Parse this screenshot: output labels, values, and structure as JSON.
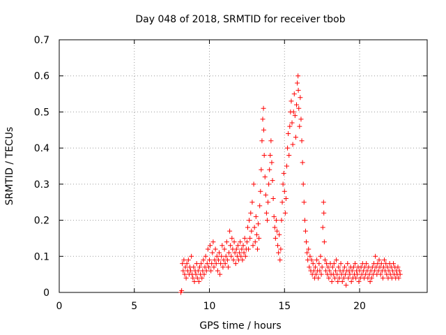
{
  "chart_data": {
    "type": "scatter",
    "title": "Day 048 of 2018, SRMTID for receiver tbob",
    "xlabel": "GPS time / hours",
    "ylabel": "SRMTID / TECUs",
    "xlim": [
      0,
      24.5
    ],
    "ylim": [
      0,
      0.7
    ],
    "xticks": [
      0,
      5,
      10,
      15,
      20
    ],
    "yticks": [
      0,
      0.1,
      0.2,
      0.3,
      0.4,
      0.5,
      0.6,
      0.7
    ],
    "x_tick_labels": [
      "0",
      "5",
      "10",
      "15",
      "20"
    ],
    "y_tick_labels": [
      "0",
      "0.1",
      "0.2",
      "0.3",
      "0.4",
      "0.5",
      "0.6",
      "0.7"
    ],
    "grid": true,
    "marker": "+",
    "color": "#ff0000",
    "series": [
      {
        "name": "SRMTID",
        "points": [
          [
            8.1,
            0.0
          ],
          [
            8.15,
            0.005
          ],
          [
            8.2,
            0.08
          ],
          [
            8.25,
            0.06
          ],
          [
            8.3,
            0.09
          ],
          [
            8.35,
            0.05
          ],
          [
            8.4,
            0.07
          ],
          [
            8.45,
            0.04
          ],
          [
            8.5,
            0.08
          ],
          [
            8.55,
            0.06
          ],
          [
            8.6,
            0.09
          ],
          [
            8.65,
            0.05
          ],
          [
            8.7,
            0.07
          ],
          [
            8.75,
            0.06
          ],
          [
            8.8,
            0.1
          ],
          [
            8.85,
            0.05
          ],
          [
            8.9,
            0.04
          ],
          [
            8.95,
            0.07
          ],
          [
            9.0,
            0.03
          ],
          [
            9.05,
            0.06
          ],
          [
            9.1,
            0.05
          ],
          [
            9.15,
            0.08
          ],
          [
            9.2,
            0.04
          ],
          [
            9.25,
            0.06
          ],
          [
            9.3,
            0.03
          ],
          [
            9.35,
            0.07
          ],
          [
            9.4,
            0.05
          ],
          [
            9.45,
            0.08
          ],
          [
            9.5,
            0.04
          ],
          [
            9.55,
            0.06
          ],
          [
            9.6,
            0.09
          ],
          [
            9.65,
            0.05
          ],
          [
            9.7,
            0.07
          ],
          [
            9.75,
            0.1
          ],
          [
            9.8,
            0.06
          ],
          [
            9.85,
            0.08
          ],
          [
            9.9,
            0.12
          ],
          [
            9.95,
            0.07
          ],
          [
            10.0,
            0.09
          ],
          [
            10.05,
            0.13
          ],
          [
            10.1,
            0.06
          ],
          [
            10.15,
            0.08
          ],
          [
            10.2,
            0.11
          ],
          [
            10.25,
            0.14
          ],
          [
            10.3,
            0.07
          ],
          [
            10.35,
            0.09
          ],
          [
            10.4,
            0.12
          ],
          [
            10.45,
            0.08
          ],
          [
            10.5,
            0.1
          ],
          [
            10.55,
            0.06
          ],
          [
            10.6,
            0.09
          ],
          [
            10.65,
            0.11
          ],
          [
            10.7,
            0.05
          ],
          [
            10.75,
            0.08
          ],
          [
            10.8,
            0.1
          ],
          [
            10.85,
            0.13
          ],
          [
            10.9,
            0.07
          ],
          [
            10.95,
            0.09
          ],
          [
            11.0,
            0.12
          ],
          [
            11.05,
            0.08
          ],
          [
            11.1,
            0.1
          ],
          [
            11.15,
            0.14
          ],
          [
            11.2,
            0.09
          ],
          [
            11.25,
            0.07
          ],
          [
            11.3,
            0.11
          ],
          [
            11.35,
            0.17
          ],
          [
            11.4,
            0.13
          ],
          [
            11.45,
            0.1
          ],
          [
            11.5,
            0.15
          ],
          [
            11.55,
            0.12
          ],
          [
            11.6,
            0.09
          ],
          [
            11.65,
            0.14
          ],
          [
            11.7,
            0.11
          ],
          [
            11.75,
            0.08
          ],
          [
            11.8,
            0.12
          ],
          [
            11.85,
            0.1
          ],
          [
            11.9,
            0.13
          ],
          [
            11.95,
            0.09
          ],
          [
            12.0,
            0.11
          ],
          [
            12.05,
            0.14
          ],
          [
            12.1,
            0.1
          ],
          [
            12.15,
            0.12
          ],
          [
            12.2,
            0.09
          ],
          [
            12.25,
            0.13
          ],
          [
            12.3,
            0.11
          ],
          [
            12.35,
            0.15
          ],
          [
            12.4,
            0.1
          ],
          [
            12.45,
            0.12
          ],
          [
            12.5,
            0.14
          ],
          [
            12.55,
            0.18
          ],
          [
            12.6,
            0.12
          ],
          [
            12.65,
            0.2
          ],
          [
            12.7,
            0.15
          ],
          [
            12.75,
            0.22
          ],
          [
            12.8,
            0.17
          ],
          [
            12.85,
            0.25
          ],
          [
            12.9,
            0.13
          ],
          [
            12.95,
            0.3
          ],
          [
            13.0,
            0.18
          ],
          [
            13.05,
            0.14
          ],
          [
            13.1,
            0.21
          ],
          [
            13.15,
            0.16
          ],
          [
            13.2,
            0.12
          ],
          [
            13.25,
            0.19
          ],
          [
            13.3,
            0.15
          ],
          [
            13.35,
            0.24
          ],
          [
            13.4,
            0.28
          ],
          [
            13.45,
            0.34
          ],
          [
            13.5,
            0.42
          ],
          [
            13.55,
            0.48
          ],
          [
            13.6,
            0.51
          ],
          [
            13.62,
            0.45
          ],
          [
            13.65,
            0.38
          ],
          [
            13.7,
            0.32
          ],
          [
            13.75,
            0.27
          ],
          [
            13.8,
            0.22
          ],
          [
            13.85,
            0.2
          ],
          [
            13.9,
            0.25
          ],
          [
            13.95,
            0.3
          ],
          [
            14.0,
            0.34
          ],
          [
            14.05,
            0.38
          ],
          [
            14.1,
            0.42
          ],
          [
            14.15,
            0.36
          ],
          [
            14.2,
            0.31
          ],
          [
            14.25,
            0.26
          ],
          [
            14.3,
            0.21
          ],
          [
            14.35,
            0.18
          ],
          [
            14.4,
            0.15
          ],
          [
            14.45,
            0.2
          ],
          [
            14.5,
            0.17
          ],
          [
            14.55,
            0.13
          ],
          [
            14.6,
            0.11
          ],
          [
            14.65,
            0.16
          ],
          [
            14.7,
            0.09
          ],
          [
            14.75,
            0.12
          ],
          [
            14.8,
            0.2
          ],
          [
            14.85,
            0.25
          ],
          [
            14.9,
            0.3
          ],
          [
            14.95,
            0.33
          ],
          [
            15.0,
            0.28
          ],
          [
            15.05,
            0.22
          ],
          [
            15.1,
            0.26
          ],
          [
            15.15,
            0.35
          ],
          [
            15.2,
            0.4
          ],
          [
            15.25,
            0.44
          ],
          [
            15.3,
            0.38
          ],
          [
            15.35,
            0.46
          ],
          [
            15.4,
            0.5
          ],
          [
            15.45,
            0.53
          ],
          [
            15.5,
            0.47
          ],
          [
            15.55,
            0.41
          ],
          [
            15.6,
            0.5
          ],
          [
            15.65,
            0.55
          ],
          [
            15.7,
            0.49
          ],
          [
            15.75,
            0.43
          ],
          [
            15.8,
            0.52
          ],
          [
            15.85,
            0.58
          ],
          [
            15.9,
            0.6
          ],
          [
            15.92,
            0.56
          ],
          [
            15.95,
            0.51
          ],
          [
            16.0,
            0.46
          ],
          [
            16.05,
            0.54
          ],
          [
            16.1,
            0.48
          ],
          [
            16.15,
            0.42
          ],
          [
            16.2,
            0.36
          ],
          [
            16.25,
            0.3
          ],
          [
            16.3,
            0.25
          ],
          [
            16.35,
            0.2
          ],
          [
            16.4,
            0.17
          ],
          [
            16.45,
            0.14
          ],
          [
            16.5,
            0.11
          ],
          [
            16.55,
            0.09
          ],
          [
            16.6,
            0.12
          ],
          [
            16.65,
            0.07
          ],
          [
            16.7,
            0.1
          ],
          [
            16.75,
            0.06
          ],
          [
            16.8,
            0.09
          ],
          [
            16.85,
            0.05
          ],
          [
            16.9,
            0.08
          ],
          [
            16.95,
            0.06
          ],
          [
            17.0,
            0.04
          ],
          [
            17.05,
            0.07
          ],
          [
            17.1,
            0.05
          ],
          [
            17.15,
            0.09
          ],
          [
            17.2,
            0.06
          ],
          [
            17.25,
            0.04
          ],
          [
            17.3,
            0.08
          ],
          [
            17.35,
            0.06
          ],
          [
            17.4,
            0.1
          ],
          [
            17.45,
            0.05
          ],
          [
            17.5,
            0.07
          ],
          [
            17.55,
            0.18
          ],
          [
            17.6,
            0.25
          ],
          [
            17.62,
            0.22
          ],
          [
            17.65,
            0.14
          ],
          [
            17.7,
            0.09
          ],
          [
            17.75,
            0.06
          ],
          [
            17.8,
            0.08
          ],
          [
            17.85,
            0.05
          ],
          [
            17.9,
            0.07
          ],
          [
            17.95,
            0.04
          ],
          [
            18.0,
            0.06
          ],
          [
            18.05,
            0.08
          ],
          [
            18.1,
            0.05
          ],
          [
            18.15,
            0.03
          ],
          [
            18.2,
            0.07
          ],
          [
            18.25,
            0.05
          ],
          [
            18.3,
            0.08
          ],
          [
            18.35,
            0.04
          ],
          [
            18.4,
            0.06
          ],
          [
            18.45,
            0.09
          ],
          [
            18.5,
            0.05
          ],
          [
            18.55,
            0.03
          ],
          [
            18.6,
            0.07
          ],
          [
            18.65,
            0.04
          ],
          [
            18.7,
            0.06
          ],
          [
            18.75,
            0.08
          ],
          [
            18.8,
            0.05
          ],
          [
            18.85,
            0.03
          ],
          [
            18.9,
            0.06
          ],
          [
            18.95,
            0.04
          ],
          [
            19.0,
            0.07
          ],
          [
            19.05,
            0.05
          ],
          [
            19.1,
            0.02
          ],
          [
            19.15,
            0.06
          ],
          [
            19.2,
            0.08
          ],
          [
            19.25,
            0.04
          ],
          [
            19.3,
            0.06
          ],
          [
            19.35,
            0.05
          ],
          [
            19.4,
            0.07
          ],
          [
            19.45,
            0.03
          ],
          [
            19.5,
            0.06
          ],
          [
            19.55,
            0.04
          ],
          [
            19.6,
            0.07
          ],
          [
            19.65,
            0.05
          ],
          [
            19.7,
            0.08
          ],
          [
            19.75,
            0.04
          ],
          [
            19.8,
            0.06
          ],
          [
            19.85,
            0.05
          ],
          [
            19.9,
            0.07
          ],
          [
            19.95,
            0.03
          ],
          [
            20.0,
            0.06
          ],
          [
            20.05,
            0.04
          ],
          [
            20.1,
            0.07
          ],
          [
            20.15,
            0.05
          ],
          [
            20.2,
            0.08
          ],
          [
            20.25,
            0.06
          ],
          [
            20.3,
            0.04
          ],
          [
            20.35,
            0.07
          ],
          [
            20.4,
            0.05
          ],
          [
            20.45,
            0.08
          ],
          [
            20.5,
            0.06
          ],
          [
            20.55,
            0.04
          ],
          [
            20.6,
            0.07
          ],
          [
            20.65,
            0.05
          ],
          [
            20.7,
            0.03
          ],
          [
            20.75,
            0.06
          ],
          [
            20.8,
            0.04
          ],
          [
            20.85,
            0.07
          ],
          [
            20.9,
            0.05
          ],
          [
            20.95,
            0.08
          ],
          [
            21.0,
            0.06
          ],
          [
            21.05,
            0.1
          ],
          [
            21.1,
            0.07
          ],
          [
            21.15,
            0.05
          ],
          [
            21.2,
            0.08
          ],
          [
            21.25,
            0.06
          ],
          [
            21.3,
            0.09
          ],
          [
            21.35,
            0.07
          ],
          [
            21.4,
            0.05
          ],
          [
            21.45,
            0.08
          ],
          [
            21.5,
            0.06
          ],
          [
            21.55,
            0.04
          ],
          [
            21.6,
            0.07
          ],
          [
            21.65,
            0.09
          ],
          [
            21.7,
            0.06
          ],
          [
            21.75,
            0.08
          ],
          [
            21.8,
            0.05
          ],
          [
            21.85,
            0.07
          ],
          [
            21.9,
            0.04
          ],
          [
            21.95,
            0.06
          ],
          [
            22.0,
            0.08
          ],
          [
            22.05,
            0.05
          ],
          [
            22.1,
            0.07
          ],
          [
            22.15,
            0.04
          ],
          [
            22.2,
            0.06
          ],
          [
            22.25,
            0.08
          ],
          [
            22.3,
            0.05
          ],
          [
            22.35,
            0.07
          ],
          [
            22.4,
            0.04
          ],
          [
            22.45,
            0.06
          ],
          [
            22.5,
            0.05
          ],
          [
            22.55,
            0.07
          ],
          [
            22.6,
            0.04
          ],
          [
            22.65,
            0.06
          ],
          [
            22.7,
            0.05
          ]
        ]
      }
    ]
  }
}
